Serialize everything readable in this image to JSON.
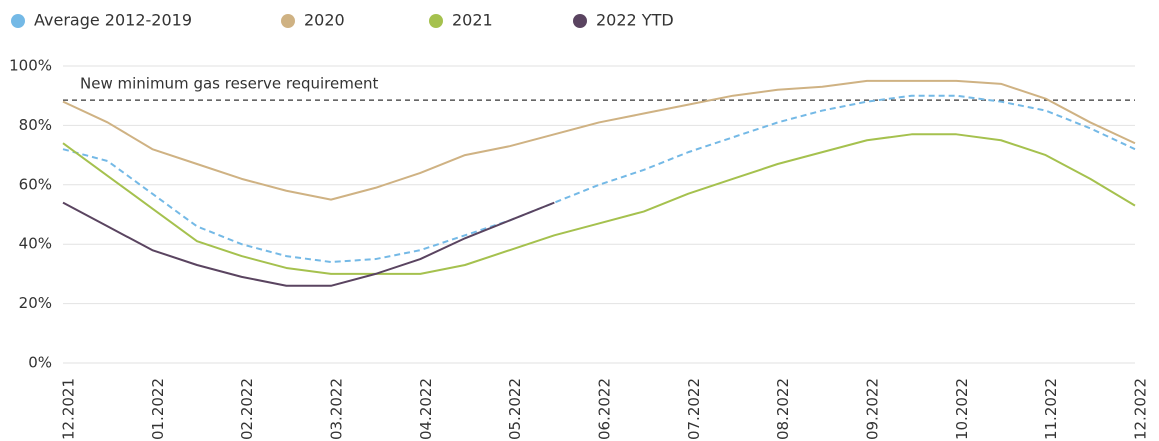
{
  "chart_data": {
    "type": "line",
    "categories": [
      "12.2021",
      null,
      "01.2022",
      null,
      "02.2022",
      null,
      "03.2022",
      null,
      "04.2022",
      null,
      "05.2022",
      null,
      "06.2022",
      null,
      "07.2022",
      null,
      "08.2022",
      null,
      "09.2022",
      null,
      "10.2022",
      null,
      "11.2022",
      null,
      "12.2022"
    ],
    "series": [
      {
        "name": "Average 2012-2019",
        "color": "#74b9e6",
        "dash": true,
        "values": [
          72,
          68,
          57,
          46,
          40,
          36,
          34,
          35,
          38,
          43,
          48,
          54,
          60,
          65,
          71,
          76,
          81,
          85,
          88,
          90,
          90,
          88,
          85,
          79,
          72
        ]
      },
      {
        "name": "2020",
        "color": "#cfb283",
        "dash": false,
        "values": [
          88,
          81,
          72,
          67,
          62,
          58,
          55,
          59,
          64,
          70,
          73,
          77,
          81,
          84,
          87,
          90,
          92,
          93,
          95,
          95,
          95,
          94,
          89,
          81,
          74
        ]
      },
      {
        "name": "2021",
        "color": "#a5c14e",
        "dash": false,
        "values": [
          74,
          63,
          52,
          41,
          36,
          32,
          30,
          30,
          30,
          33,
          38,
          43,
          47,
          51,
          57,
          62,
          67,
          71,
          75,
          77,
          77,
          75,
          70,
          62,
          53
        ]
      },
      {
        "name": "2022 YTD",
        "color": "#5a4460",
        "dash": false,
        "values": [
          54,
          46,
          38,
          33,
          29,
          26,
          26,
          30,
          35,
          42,
          48,
          54,
          null,
          null,
          null,
          null,
          null,
          null,
          null,
          null,
          null,
          null,
          null,
          null,
          null
        ]
      }
    ],
    "ylim": [
      0,
      100
    ],
    "yticks": [
      {
        "value": 0,
        "label": "0%"
      },
      {
        "value": 20,
        "label": "20%"
      },
      {
        "value": 40,
        "label": "40%"
      },
      {
        "value": 60,
        "label": "60%"
      },
      {
        "value": 80,
        "label": "80%"
      },
      {
        "value": 100,
        "label": "100%"
      }
    ],
    "grid": true,
    "reference_line": {
      "value": 88.5,
      "label": "New minimum gas reserve requirement"
    },
    "legend": "top"
  }
}
